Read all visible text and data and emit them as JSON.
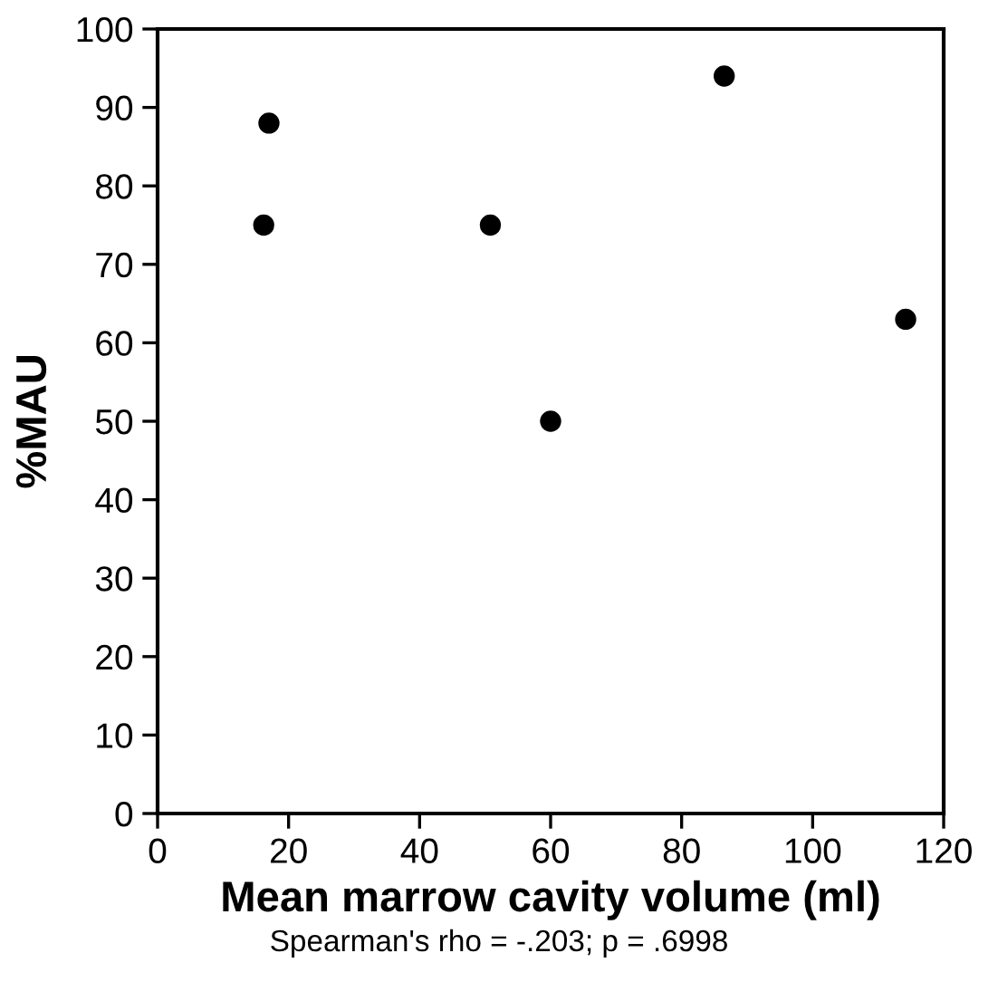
{
  "chart_data": {
    "type": "scatter",
    "xlabel": "Mean marrow cavity volume (ml)",
    "ylabel": "%MAU",
    "x": [
      17,
      16.2,
      50.8,
      60,
      86.5,
      114.2
    ],
    "values": [
      88,
      75,
      75,
      50,
      94,
      63
    ],
    "color": "#000000",
    "marker": "circle",
    "xlim": [
      0,
      120
    ],
    "ylim": [
      0,
      100
    ],
    "xticks": [
      0,
      20,
      40,
      60,
      80,
      100,
      120
    ],
    "yticks": [
      0,
      10,
      20,
      30,
      40,
      50,
      60,
      70,
      80,
      90,
      100
    ],
    "grid": false,
    "annotations": [
      "Spearman's rho = -.203; p = .6998"
    ]
  }
}
